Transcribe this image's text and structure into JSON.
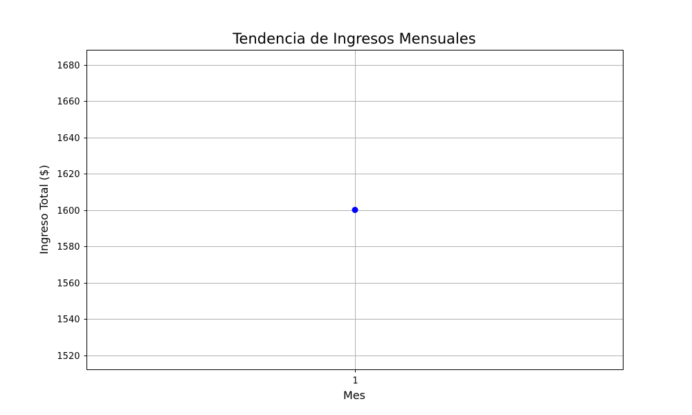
{
  "chart_data": {
    "type": "line",
    "title": "Tendencia de Ingresos Mensuales",
    "xlabel": "Mes",
    "ylabel": "Ingreso Total ($)",
    "x_ticks": [
      "1"
    ],
    "y_ticks": [
      1520,
      1540,
      1560,
      1580,
      1600,
      1620,
      1640,
      1660,
      1680
    ],
    "xlim": [
      0.96,
      1.04
    ],
    "ylim": [
      1512,
      1688
    ],
    "grid": true,
    "series": [
      {
        "x": [
          1
        ],
        "y": [
          1600
        ],
        "color": "#0000ff",
        "marker": "circle"
      }
    ]
  }
}
